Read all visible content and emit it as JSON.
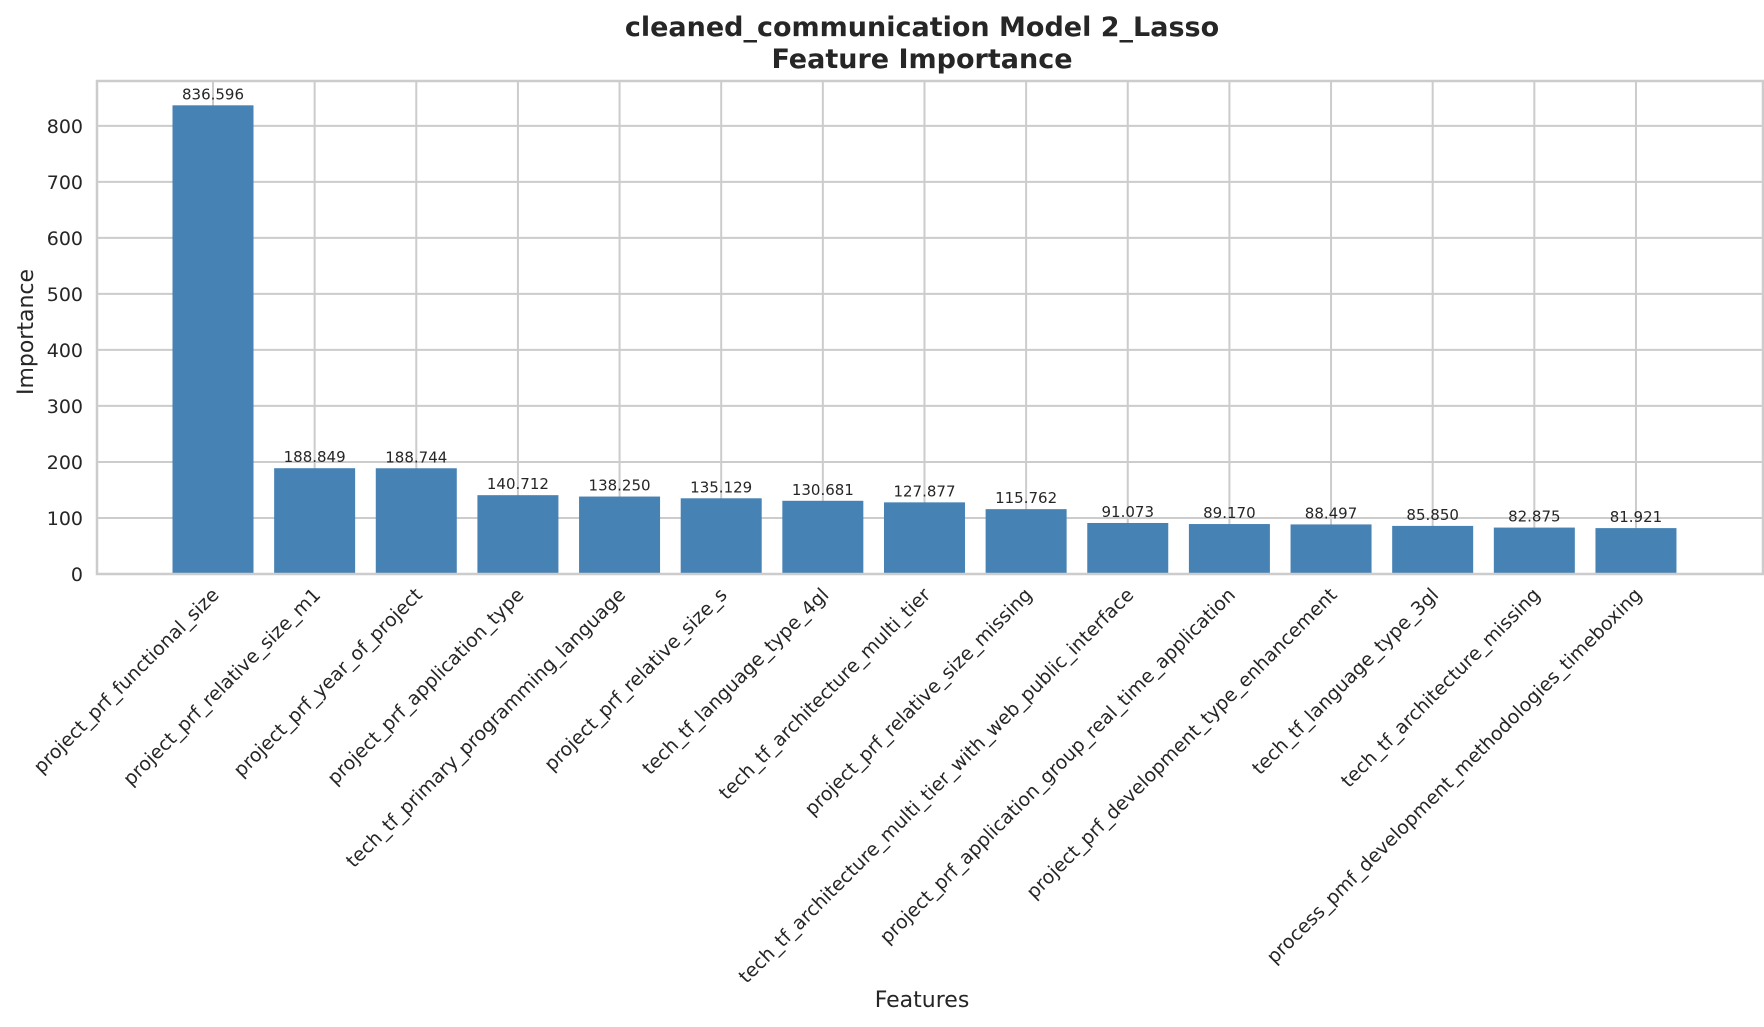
{
  "chart_data": {
    "type": "bar",
    "title_line1": "cleaned_communication Model 2_Lasso",
    "title_line2": "Feature Importance",
    "xlabel": "Features",
    "ylabel": "Importance",
    "ylim": [
      0,
      880
    ],
    "yticks": [
      0,
      100,
      200,
      300,
      400,
      500,
      600,
      700,
      800
    ],
    "grid": true,
    "bar_color": "#4682b4",
    "categories": [
      "project_prf_functional_size",
      "project_prf_relative_size_m1",
      "project_prf_year_of_project",
      "project_prf_application_type",
      "tech_tf_primary_programming_language",
      "project_prf_relative_size_s",
      "tech_tf_language_type_4gl",
      "tech_tf_architecture_multi_tier",
      "project_prf_relative_size_missing",
      "tech_tf_architecture_multi_tier_with_web_public_interface",
      "project_prf_application_group_real_time_application",
      "project_prf_development_type_enhancement",
      "tech_tf_language_type_3gl",
      "tech_tf_architecture_missing",
      "process_pmf_development_methodologies_timeboxing"
    ],
    "values": [
      836.596,
      188.849,
      188.744,
      140.712,
      138.25,
      135.129,
      130.681,
      127.877,
      115.762,
      91.073,
      89.17,
      88.497,
      85.85,
      82.875,
      81.921
    ],
    "value_labels": [
      "836.596",
      "188.849",
      "188.744",
      "140.712",
      "138.250",
      "135.129",
      "130.681",
      "127.877",
      "115.762",
      "91.073",
      "89.170",
      "88.497",
      "85.850",
      "82.875",
      "81.921"
    ]
  }
}
